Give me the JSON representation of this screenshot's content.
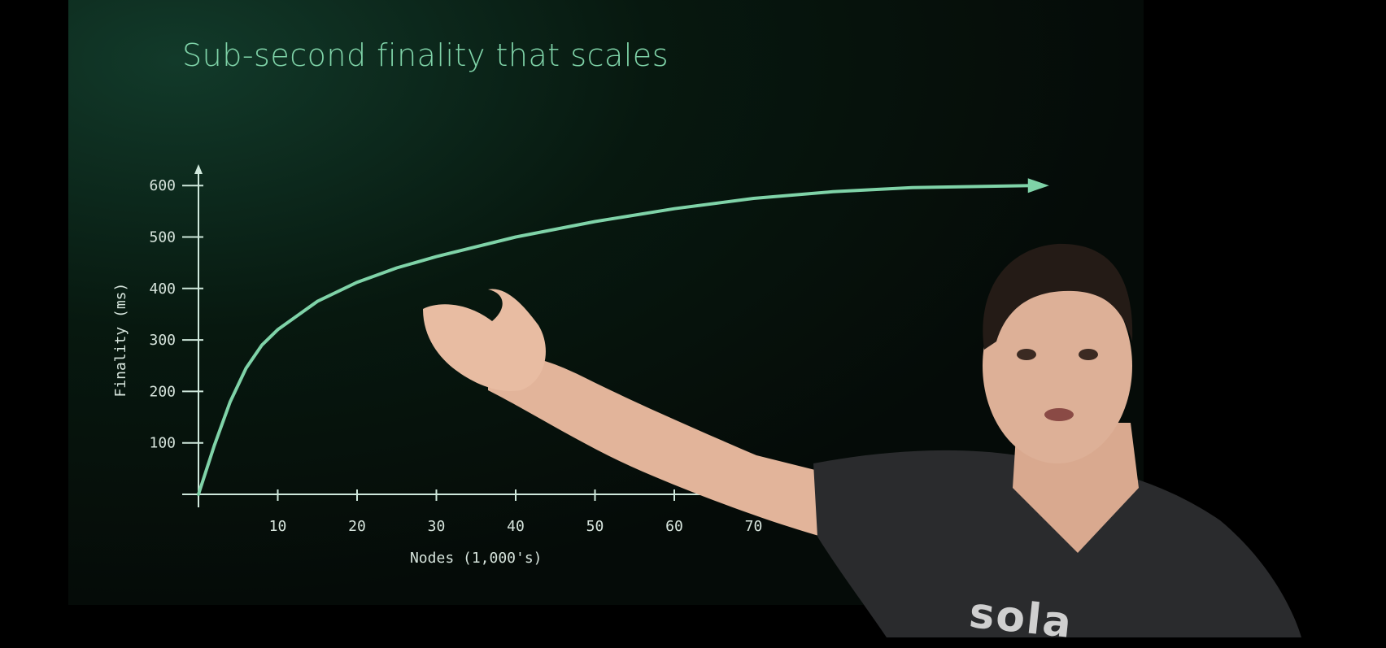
{
  "slide": {
    "title": "Sub-second finality that scales",
    "shirt_text": "sola"
  },
  "colors": {
    "accent": "#7fd3a8",
    "axis": "#cfe8dc",
    "background": "#050b08"
  },
  "chart_data": {
    "type": "line",
    "title": "Sub-second finality that scales",
    "xlabel": "Nodes (1,000's)",
    "ylabel": "Finality (ms)",
    "x_ticks": [
      10,
      20,
      30,
      40,
      50,
      60,
      70
    ],
    "y_ticks": [
      100,
      200,
      300,
      400,
      500,
      600
    ],
    "xlim": [
      0,
      105
    ],
    "ylim": [
      0,
      600
    ],
    "series": [
      {
        "name": "Finality",
        "x": [
          0,
          2,
          4,
          6,
          8,
          10,
          15,
          20,
          25,
          30,
          40,
          50,
          60,
          70,
          80,
          90,
          105
        ],
        "y": [
          0,
          95,
          180,
          245,
          290,
          320,
          375,
          412,
          440,
          462,
          500,
          530,
          555,
          575,
          588,
          596,
          600
        ]
      }
    ],
    "arrow_at_end": true
  }
}
